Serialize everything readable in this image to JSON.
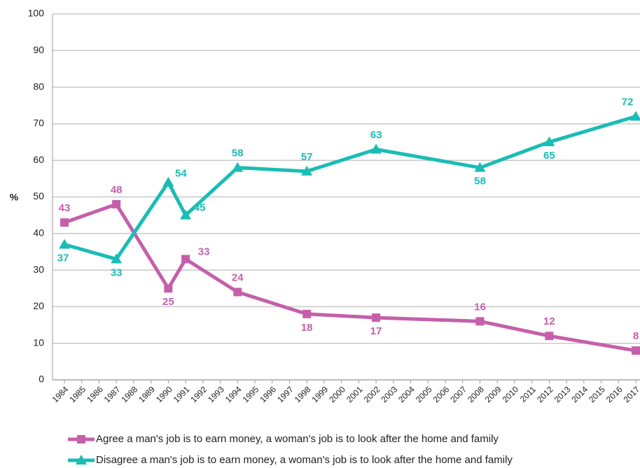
{
  "chart_data": {
    "type": "line",
    "ylabel": "%",
    "x": [
      1984,
      1987,
      1990,
      1991,
      1994,
      1998,
      2002,
      2008,
      2012,
      2017
    ],
    "xlim": [
      1984,
      2017
    ],
    "xticks": [
      1984,
      1985,
      1986,
      1987,
      1988,
      1989,
      1990,
      1991,
      1992,
      1993,
      1994,
      1995,
      1996,
      1997,
      1998,
      1999,
      2000,
      2001,
      2002,
      2003,
      2004,
      2005,
      2006,
      2007,
      2008,
      2009,
      2010,
      2011,
      2012,
      2013,
      2014,
      2015,
      2016,
      2017
    ],
    "ylim": [
      0,
      100
    ],
    "yticks": [
      0,
      10,
      20,
      30,
      40,
      50,
      60,
      70,
      80,
      90,
      100
    ],
    "grid": true,
    "legend": "bottom",
    "series": [
      {
        "name": "Agree a man's job is to earn money, a woman's job is to look after the home and family",
        "color": "#c55fab",
        "marker": "square",
        "values": [
          43,
          48,
          25,
          33,
          24,
          18,
          17,
          16,
          12,
          8
        ]
      },
      {
        "name": "Disagree a man's job is to earn money, a woman's job is to look after the home and family",
        "color": "#19bdb5",
        "marker": "triangle",
        "values": [
          37,
          33,
          54,
          45,
          58,
          57,
          63,
          58,
          65,
          72
        ]
      }
    ]
  }
}
